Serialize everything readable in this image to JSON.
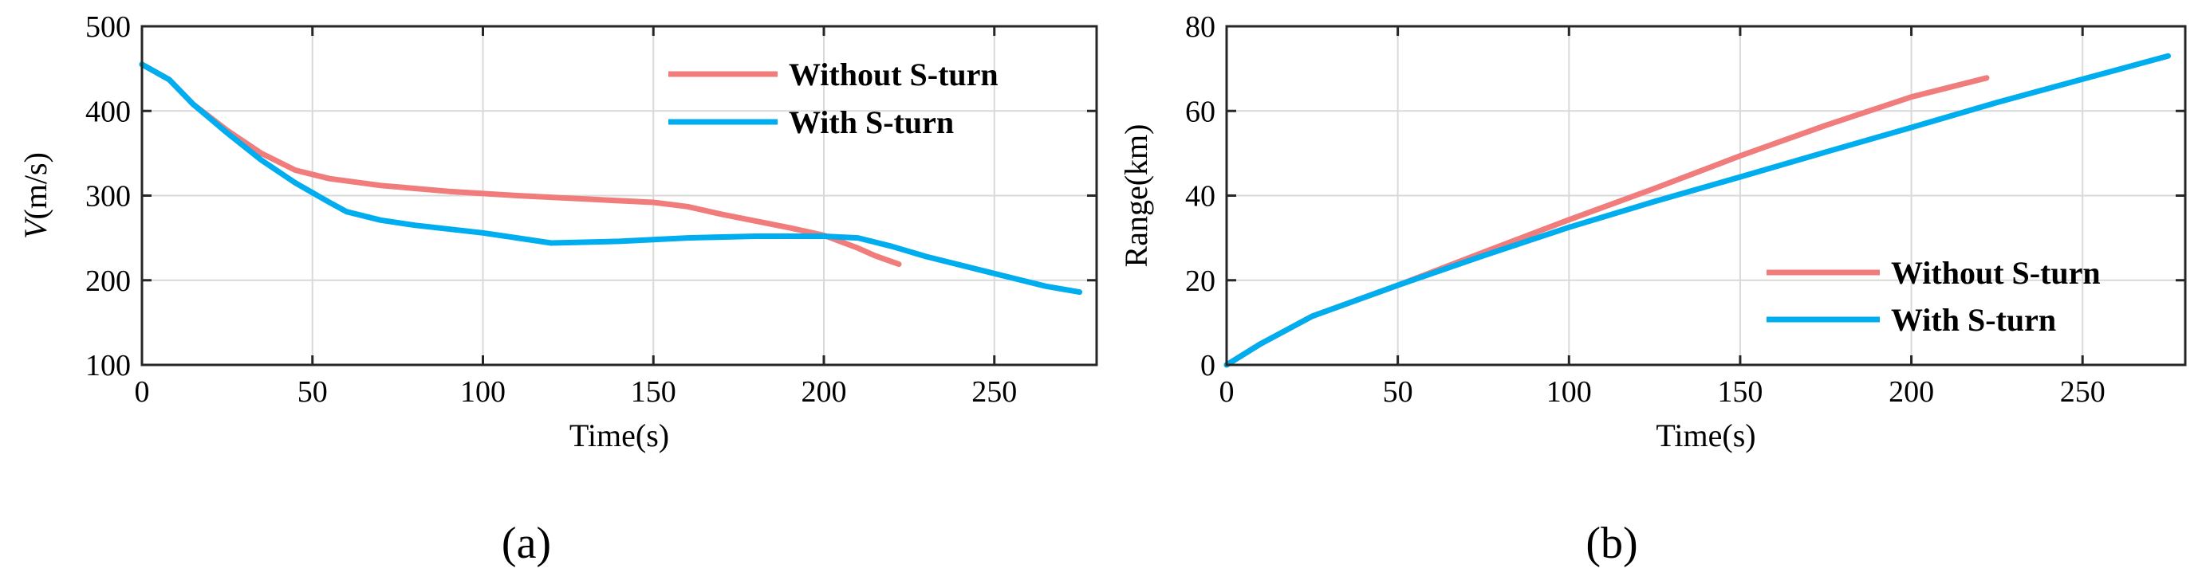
{
  "chart_data": [
    {
      "type": "line",
      "panel_label": "(a)",
      "xlabel": "Time(s)",
      "ylabel_italic": "V",
      "ylabel_unit": "(m/s)",
      "xlim": [
        0,
        280
      ],
      "ylim": [
        100,
        500
      ],
      "xticks": [
        0,
        50,
        100,
        150,
        200,
        250
      ],
      "yticks": [
        100,
        200,
        300,
        400,
        500
      ],
      "grid": true,
      "legend_position": "top-right",
      "series": [
        {
          "name": "Without S-turn",
          "color": "#F07C7C",
          "x": [
            0,
            8,
            15,
            25,
            35,
            45,
            55,
            70,
            90,
            110,
            130,
            150,
            160,
            170,
            180,
            190,
            200,
            210,
            215,
            222
          ],
          "y": [
            455,
            437,
            408,
            377,
            350,
            330,
            320,
            312,
            305,
            300,
            296,
            292,
            287,
            278,
            270,
            262,
            253,
            238,
            229,
            219
          ]
        },
        {
          "name": "With S-turn",
          "color": "#00AEEF",
          "x": [
            0,
            8,
            15,
            25,
            35,
            45,
            55,
            60,
            70,
            80,
            100,
            110,
            120,
            140,
            160,
            180,
            200,
            210,
            220,
            230,
            250,
            265,
            275
          ],
          "y": [
            455,
            437,
            408,
            374,
            342,
            315,
            292,
            281,
            271,
            265,
            256,
            250,
            244,
            246,
            250,
            252,
            252,
            250,
            240,
            228,
            208,
            193,
            186
          ]
        }
      ]
    },
    {
      "type": "line",
      "panel_label": "(b)",
      "xlabel": "Time(s)",
      "ylabel": "Range(km)",
      "xlim": [
        0,
        280
      ],
      "ylim": [
        0,
        80
      ],
      "xticks": [
        0,
        50,
        100,
        150,
        200,
        250
      ],
      "yticks": [
        0,
        20,
        40,
        60,
        80
      ],
      "grid": true,
      "legend_position": "bottom-right",
      "series": [
        {
          "name": "Without S-turn",
          "color": "#F07C7C",
          "x": [
            0,
            10,
            25,
            50,
            75,
            100,
            125,
            150,
            175,
            200,
            222
          ],
          "y": [
            0,
            5,
            11.5,
            18.8,
            26.6,
            34.3,
            41.7,
            49.4,
            56.6,
            63.3,
            67.8
          ]
        },
        {
          "name": "With S-turn",
          "color": "#00AEEF",
          "x": [
            0,
            10,
            25,
            50,
            75,
            100,
            125,
            150,
            175,
            200,
            225,
            250,
            275
          ],
          "y": [
            0,
            5,
            11.5,
            18.8,
            25.8,
            32.5,
            38.6,
            44.4,
            50.3,
            56.1,
            62,
            67.5,
            73
          ]
        }
      ]
    }
  ]
}
